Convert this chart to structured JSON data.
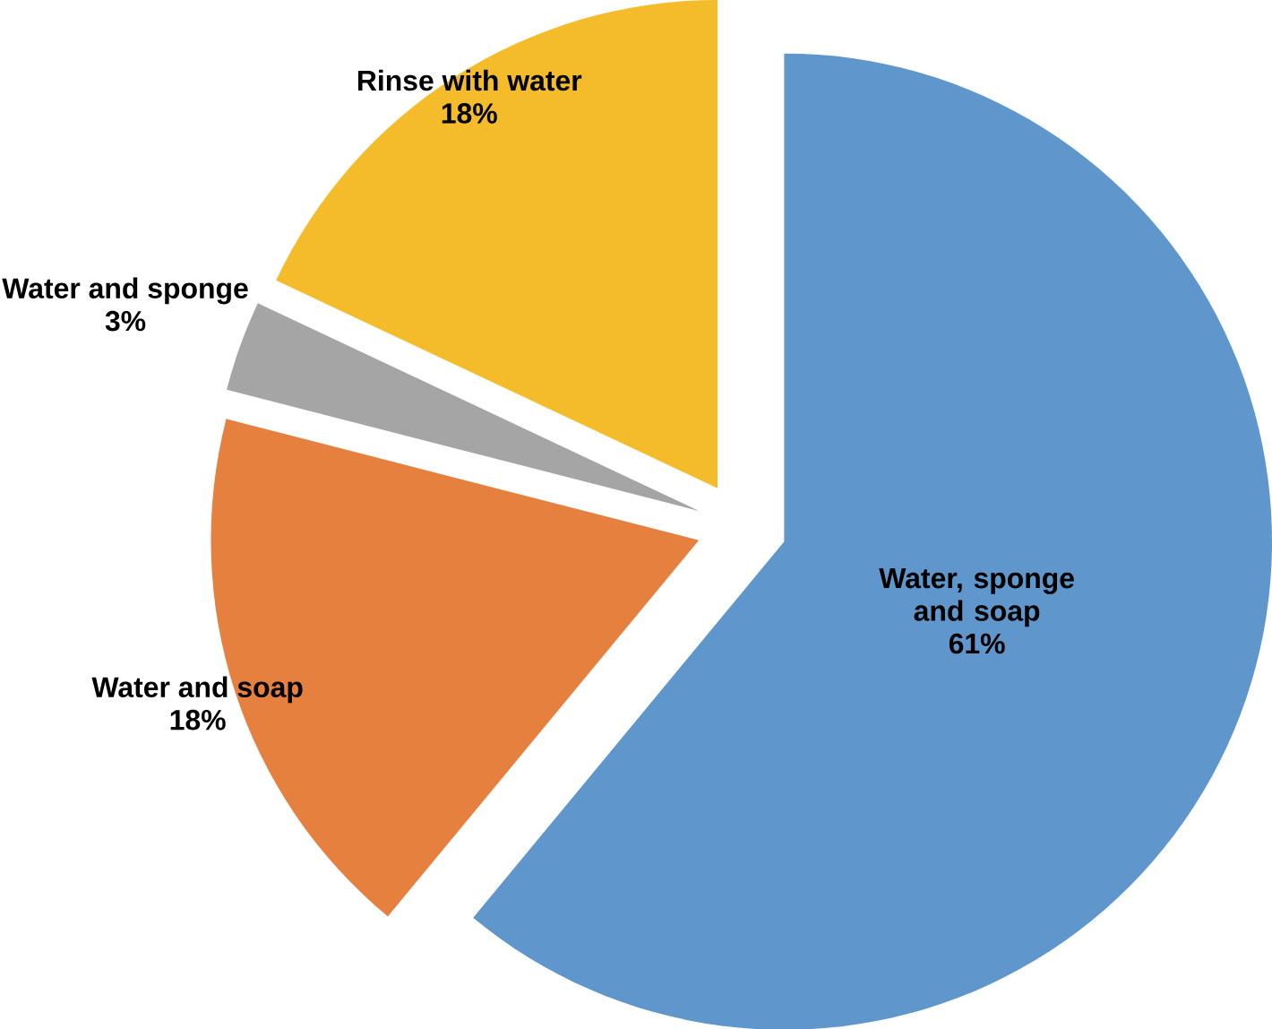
{
  "chart_data": {
    "type": "pie",
    "categories": [
      "Water, sponge and soap",
      "Water and soap",
      "Water and sponge",
      "Rinse with water"
    ],
    "values": [
      61,
      18,
      3,
      18
    ],
    "colors": [
      "#5f97cc",
      "#e5803f",
      "#a5a5a5",
      "#f4bc2b"
    ],
    "value_labels": [
      "61%",
      "18%",
      "3%",
      "18%"
    ]
  }
}
